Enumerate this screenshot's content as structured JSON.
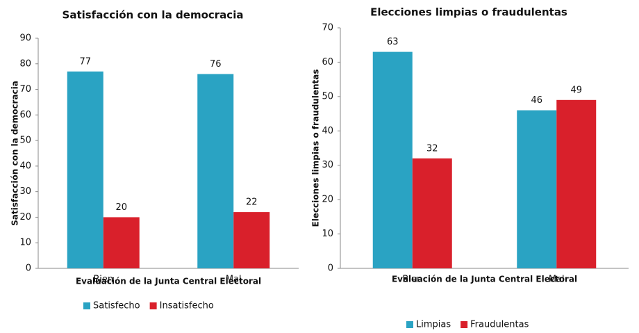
{
  "chart_data": [
    {
      "type": "bar",
      "title": "Satisfacción con la democracia",
      "x_label": "Evaluación de la Junta Central Electoral",
      "y_label": "Satisfacción con la democracia",
      "categories": [
        "Bien",
        "Mal"
      ],
      "series": [
        {
          "name": "Satisfecho",
          "color": "#2aa3c3",
          "values": [
            77,
            76
          ]
        },
        {
          "name": "Insatisfecho",
          "color": "#d9202b",
          "values": [
            20,
            22
          ]
        }
      ],
      "ylim": [
        0,
        90
      ],
      "yticks": [
        0,
        10,
        20,
        30,
        40,
        50,
        60,
        70,
        80,
        90
      ],
      "grid": false,
      "legend": "bottom"
    },
    {
      "type": "bar",
      "title": "Elecciones limpias o fraudulentas",
      "x_label": "Evaluación de la Junta Central Electoral",
      "y_label": "Elecciones limpias o fraudulentas",
      "categories": [
        "Bien",
        "Mal"
      ],
      "series": [
        {
          "name": "Limpias",
          "color": "#2aa3c3",
          "values": [
            63,
            46
          ]
        },
        {
          "name": "Fraudulentas",
          "color": "#d9202b",
          "values": [
            32,
            49
          ]
        }
      ],
      "ylim": [
        0,
        70
      ],
      "yticks": [
        0,
        10,
        20,
        30,
        40,
        50,
        60,
        70
      ],
      "grid": false,
      "legend": "bottom"
    }
  ]
}
